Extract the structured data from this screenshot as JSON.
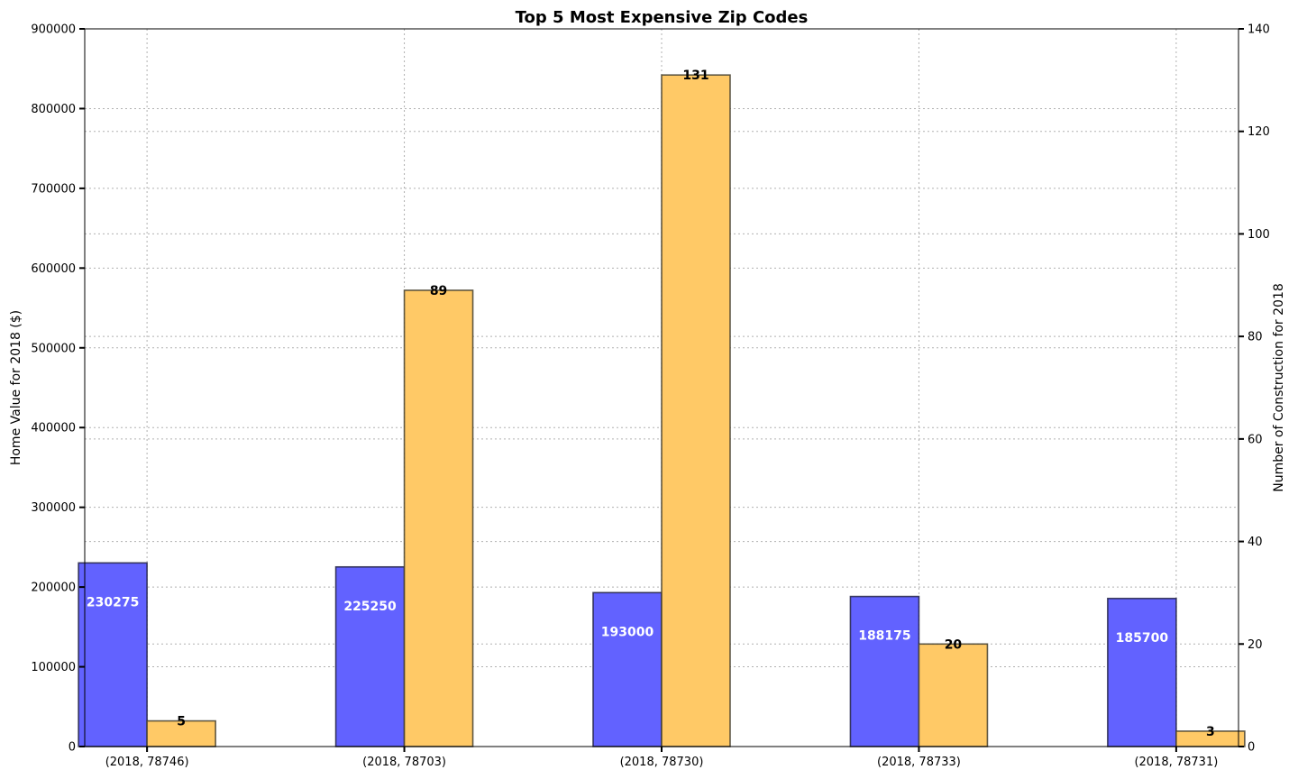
{
  "chart_data": {
    "type": "bar",
    "title": "Top 5 Most Expensive Zip Codes",
    "categories": [
      "(2018, 78746)",
      "(2018, 78703)",
      "(2018, 78730)",
      "(2018, 78733)",
      "(2018, 78731)"
    ],
    "series": [
      {
        "values": [
          230275,
          225250,
          193000,
          188175,
          185700
        ],
        "axis": "left",
        "color": "#6262ff",
        "label_color": "#ffffff"
      },
      {
        "values": [
          5,
          89,
          131,
          20,
          3
        ],
        "axis": "right",
        "color": "#ffc966",
        "label_color": "#000000"
      }
    ],
    "ylabel": "Home Value for 2018 ($)",
    "y2label": "Number of Construction for 2018",
    "ylim": [
      0,
      900000
    ],
    "y2lim": [
      0,
      140
    ],
    "yticks": [
      0,
      100000,
      200000,
      300000,
      400000,
      500000,
      600000,
      700000,
      800000,
      900000
    ],
    "y2ticks": [
      0,
      20,
      40,
      60,
      80,
      100,
      120,
      140
    ],
    "grid": true,
    "legend": false
  }
}
